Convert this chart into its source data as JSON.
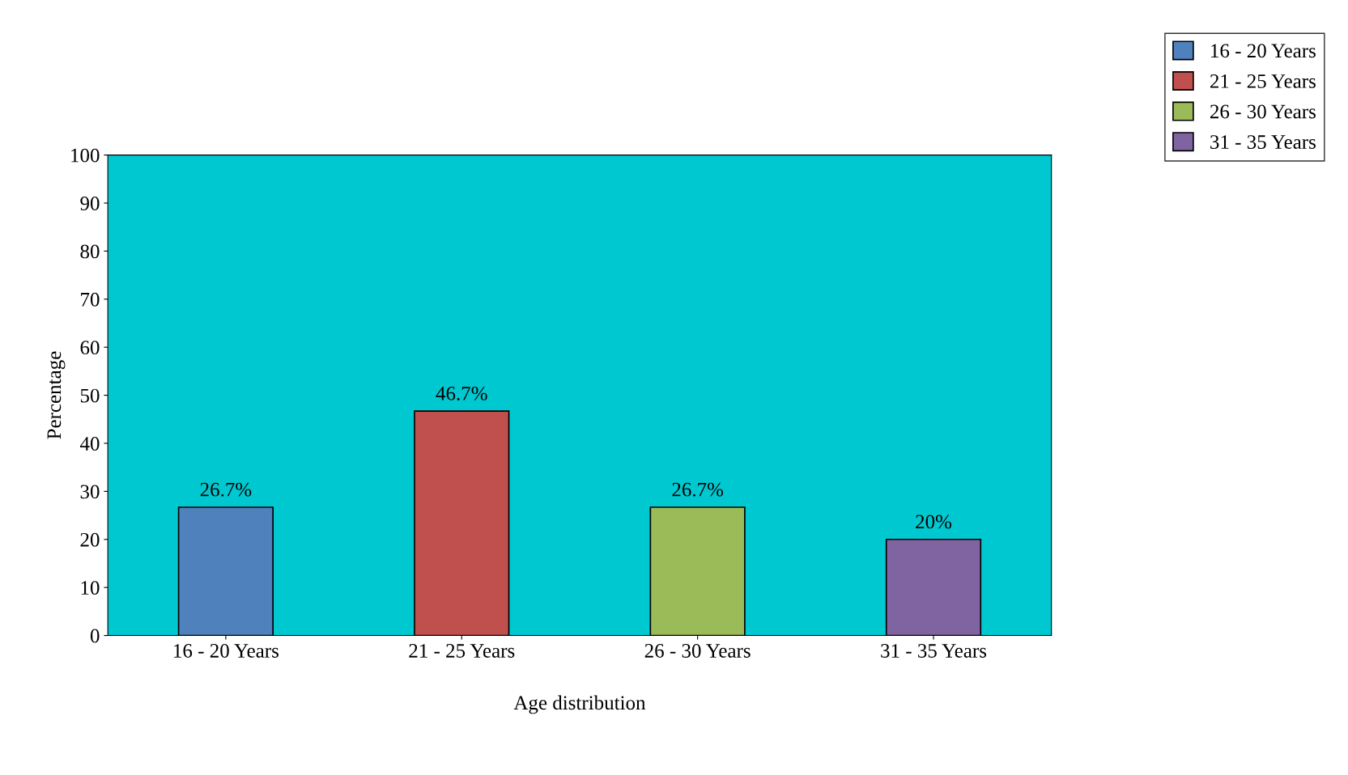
{
  "chart_data": {
    "type": "bar",
    "xlabel": "Age distribution",
    "ylabel": "Percentage",
    "categories": [
      "16 - 20 Years",
      "21 - 25 Years",
      "26 - 30 Years",
      "31 - 35 Years"
    ],
    "stacked": true,
    "series": [
      {
        "name": "16 - 20 Years",
        "color": "#4f81bd",
        "values": [
          26.7,
          null,
          null,
          null
        ],
        "value_labels": [
          "26.7%",
          null,
          null,
          null
        ]
      },
      {
        "name": "21 - 25 Years",
        "color": "#c0504d",
        "values": [
          null,
          46.7,
          null,
          null
        ],
        "value_labels": [
          null,
          "46.7%",
          null,
          null
        ]
      },
      {
        "name": "26 - 30 Years",
        "color": "#9bbb59",
        "values": [
          null,
          null,
          26.7,
          null
        ],
        "value_labels": [
          null,
          null,
          "26.7%",
          null
        ]
      },
      {
        "name": "31 - 35 Years",
        "color": "#8064a2",
        "values": [
          null,
          null,
          null,
          20
        ],
        "value_labels": [
          null,
          null,
          null,
          "20%"
        ]
      }
    ],
    "ylim": [
      0,
      100
    ],
    "yticks": [
      0,
      10,
      20,
      30,
      40,
      50,
      60,
      70,
      80,
      90,
      100
    ],
    "grid": false,
    "legend": "top right"
  }
}
